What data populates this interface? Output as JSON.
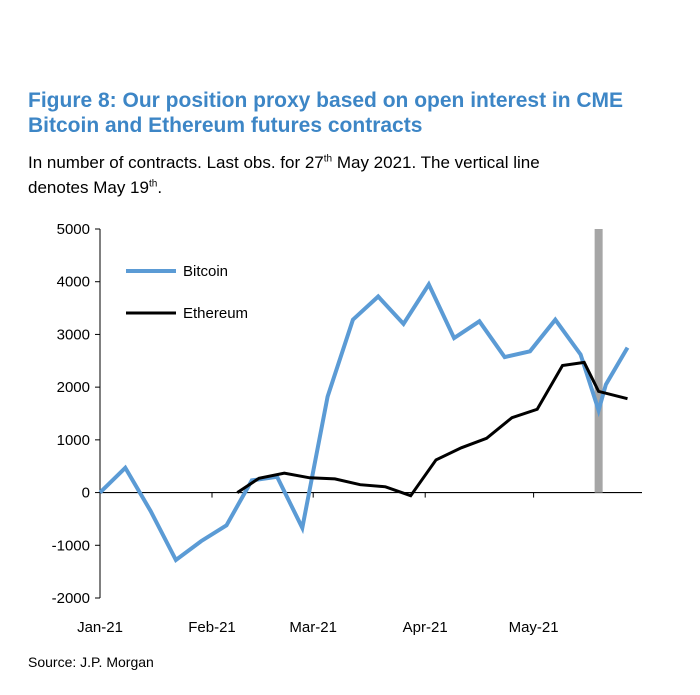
{
  "header": {
    "title_line1": "Figure 8: Our position proxy based on open interest in CME",
    "title_line2": "Bitcoin and Ethereum futures contracts",
    "subtitle_part1": "In number of contracts. Last obs. for 27",
    "subtitle_sup1": "th",
    "subtitle_part2": " May 2021. The vertical line",
    "subtitle_part3": "denotes May 19",
    "subtitle_sup2": "th",
    "subtitle_part4": "."
  },
  "footer": {
    "source": "Source: J.P. Morgan"
  },
  "colors": {
    "bitcoin": "#5b9bd5",
    "ethereum": "#000000",
    "vline": "#a6a6a6"
  },
  "chart_data": {
    "type": "line",
    "title": "Figure 8: Our position proxy based on open interest in CME Bitcoin and Ethereum futures contracts",
    "ylim": [
      -2000,
      5000
    ],
    "yticks": [
      5000,
      4000,
      3000,
      2000,
      1000,
      0,
      -1000,
      -2000
    ],
    "xlim": [
      "2021-01-01",
      "2021-05-31"
    ],
    "xticks": [
      {
        "label": "Jan-21",
        "date": "2021-01-01"
      },
      {
        "label": "Feb-21",
        "date": "2021-02-01"
      },
      {
        "label": "Mar-21",
        "date": "2021-03-01"
      },
      {
        "label": "Apr-21",
        "date": "2021-04-01"
      },
      {
        "label": "May-21",
        "date": "2021-05-01"
      }
    ],
    "vertical_line_date": "2021-05-19",
    "legend_position": "top-left",
    "grid": false,
    "series": [
      {
        "name": "Bitcoin",
        "color": "#5b9bd5",
        "points": [
          [
            "2021-01-01",
            0
          ],
          [
            "2021-01-08",
            470
          ],
          [
            "2021-01-15",
            -350
          ],
          [
            "2021-01-22",
            -1280
          ],
          [
            "2021-01-29",
            -920
          ],
          [
            "2021-02-05",
            -620
          ],
          [
            "2021-02-12",
            230
          ],
          [
            "2021-02-19",
            300
          ],
          [
            "2021-02-26",
            -670
          ],
          [
            "2021-03-05",
            1820
          ],
          [
            "2021-03-12",
            3280
          ],
          [
            "2021-03-19",
            3720
          ],
          [
            "2021-03-26",
            3200
          ],
          [
            "2021-04-02",
            3950
          ],
          [
            "2021-04-09",
            2930
          ],
          [
            "2021-04-16",
            3250
          ],
          [
            "2021-04-23",
            2570
          ],
          [
            "2021-04-30",
            2680
          ],
          [
            "2021-05-07",
            3280
          ],
          [
            "2021-05-14",
            2620
          ],
          [
            "2021-05-19",
            1560
          ],
          [
            "2021-05-21",
            2050
          ],
          [
            "2021-05-27",
            2750
          ]
        ]
      },
      {
        "name": "Ethereum",
        "color": "#000000",
        "points": [
          [
            "2021-02-08",
            0
          ],
          [
            "2021-02-14",
            270
          ],
          [
            "2021-02-21",
            370
          ],
          [
            "2021-02-28",
            280
          ],
          [
            "2021-03-07",
            260
          ],
          [
            "2021-03-14",
            150
          ],
          [
            "2021-03-21",
            110
          ],
          [
            "2021-03-28",
            -60
          ],
          [
            "2021-04-04",
            620
          ],
          [
            "2021-04-11",
            850
          ],
          [
            "2021-04-18",
            1030
          ],
          [
            "2021-04-25",
            1420
          ],
          [
            "2021-05-02",
            1580
          ],
          [
            "2021-05-09",
            2410
          ],
          [
            "2021-05-15",
            2470
          ],
          [
            "2021-05-19",
            1920
          ],
          [
            "2021-05-27",
            1780
          ]
        ]
      }
    ]
  }
}
